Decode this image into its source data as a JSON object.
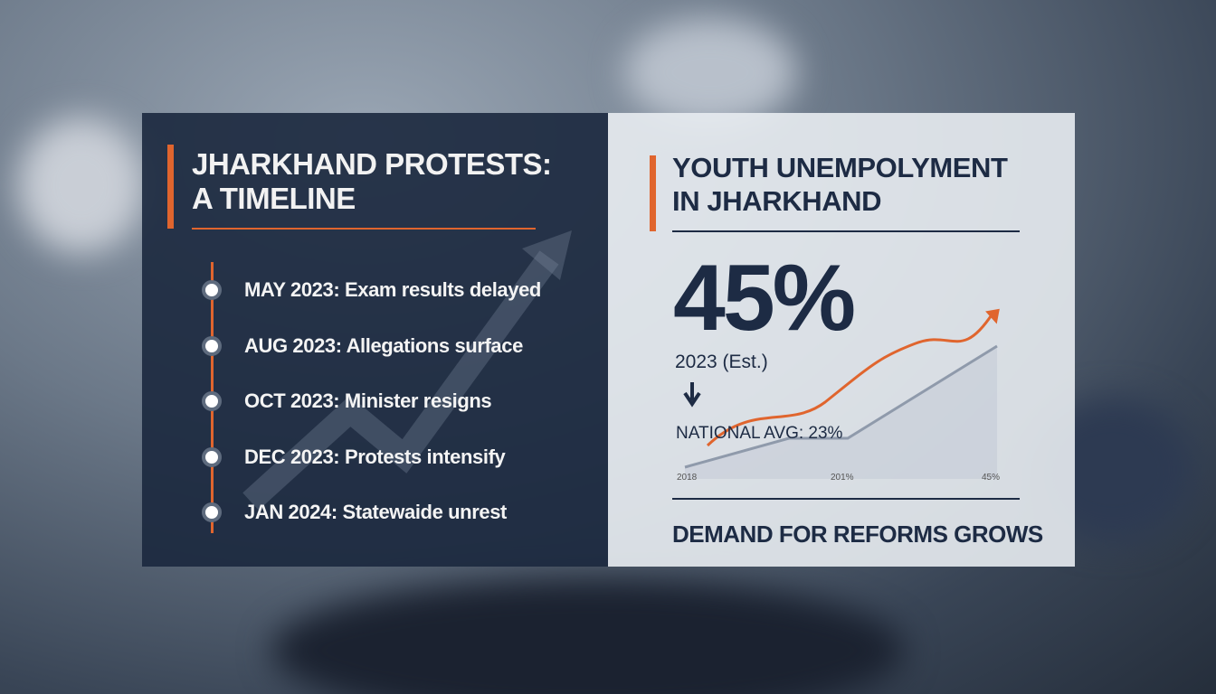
{
  "timeline": {
    "title_lines": [
      "JHARKHAND PROTESTS:",
      "A TIMELINE"
    ],
    "events": [
      "MAY 2023: Exam results delayed",
      "AUG 2023: Allegations surface",
      "OCT 2023: Minister resigns",
      "DEC 2023: Protests intensify",
      "JAN 2024: Statewaide unrest"
    ]
  },
  "stats": {
    "title_lines": [
      "YOUTH UNEMPOLYMENT",
      "IN JHARKHAND"
    ],
    "big_figure": "45%",
    "figure_note": "2023 (Est.)",
    "comparison": "NATIONAL AVG: 23%",
    "axis_labels": [
      "2018",
      "201%",
      "45%"
    ],
    "footer": "DEMAND FOR REFORMS GROWS"
  }
}
